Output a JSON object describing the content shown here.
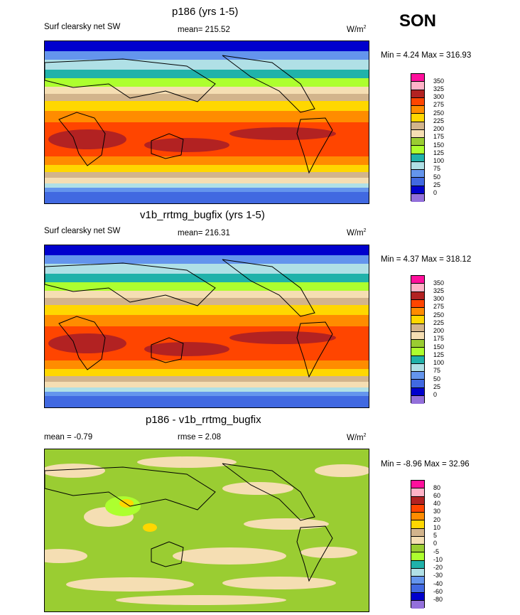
{
  "season": "SON",
  "panels": [
    {
      "title": "p186 (yrs 1-5)",
      "left_label": "Surf clearsky net SW",
      "mean_label": "mean= 215.52",
      "units": "W/m",
      "units_sup": "2",
      "minmax": "Min =   4.24 Max = 316.93",
      "colorbar_labels": [
        "350",
        "325",
        "300",
        "275",
        "250",
        "225",
        "200",
        "175",
        "150",
        "125",
        "100",
        "75",
        "50",
        "25",
        "0"
      ],
      "colors": [
        "#ff0f9c",
        "#ffb3c8",
        "#b22222",
        "#ff4500",
        "#ff8c00",
        "#ffd700",
        "#d2b48c",
        "#f5deb3",
        "#9acd32",
        "#adff2f",
        "#20b2aa",
        "#b0e0e6",
        "#6495ed",
        "#4169e1",
        "#0000cd",
        "#9370db"
      ]
    },
    {
      "title": "v1b_rrtmg_bugfix (yrs 1-5)",
      "left_label": "Surf clearsky net SW",
      "mean_label": "mean= 216.31",
      "units": "W/m",
      "units_sup": "2",
      "minmax": "Min =   4.37 Max = 318.12",
      "colorbar_labels": [
        "350",
        "325",
        "300",
        "275",
        "250",
        "225",
        "200",
        "175",
        "150",
        "125",
        "100",
        "75",
        "50",
        "25",
        "0"
      ],
      "colors": [
        "#ff0f9c",
        "#ffb3c8",
        "#b22222",
        "#ff4500",
        "#ff8c00",
        "#ffd700",
        "#d2b48c",
        "#f5deb3",
        "#9acd32",
        "#adff2f",
        "#20b2aa",
        "#b0e0e6",
        "#6495ed",
        "#4169e1",
        "#0000cd",
        "#9370db"
      ]
    },
    {
      "title": "p186 - v1b_rrtmg_bugfix",
      "left_label": "mean =  -0.79",
      "mean_label": "rmse =   2.08",
      "units": "W/m",
      "units_sup": "2",
      "minmax": "Min =  -8.96 Max =  32.96",
      "colorbar_labels": [
        "80",
        "60",
        "40",
        "30",
        "20",
        "10",
        "5",
        "0",
        "-5",
        "-10",
        "-20",
        "-30",
        "-40",
        "-60",
        "-80"
      ],
      "colors": [
        "#ff0f9c",
        "#ffb3c8",
        "#b22222",
        "#ff4500",
        "#ff8c00",
        "#ffd700",
        "#d2b48c",
        "#f5deb3",
        "#9acd32",
        "#adff2f",
        "#20b2aa",
        "#b0e0e6",
        "#6495ed",
        "#4169e1",
        "#0000cd",
        "#9370db"
      ]
    }
  ],
  "chart_data": [
    {
      "type": "heatmap",
      "title": "p186 (yrs 1-5)",
      "subtitle": "Surf clearsky net SW",
      "annotations": [
        "mean= 215.52",
        "Min =   4.24 Max = 316.93"
      ],
      "units": "W/m2",
      "levels": [
        0,
        25,
        50,
        75,
        100,
        125,
        150,
        175,
        200,
        225,
        250,
        275,
        300,
        325,
        350
      ],
      "range": [
        4.24,
        316.93
      ],
      "mean": 215.52
    },
    {
      "type": "heatmap",
      "title": "v1b_rrtmg_bugfix (yrs 1-5)",
      "subtitle": "Surf clearsky net SW",
      "annotations": [
        "mean= 216.31",
        "Min =   4.37 Max = 318.12"
      ],
      "units": "W/m2",
      "levels": [
        0,
        25,
        50,
        75,
        100,
        125,
        150,
        175,
        200,
        225,
        250,
        275,
        300,
        325,
        350
      ],
      "range": [
        4.37,
        318.12
      ],
      "mean": 216.31
    },
    {
      "type": "heatmap",
      "title": "p186 - v1b_rrtmg_bugfix",
      "annotations": [
        "mean =  -0.79",
        "rmse =   2.08",
        "Min =  -8.96 Max =  32.96"
      ],
      "units": "W/m2",
      "levels": [
        -80,
        -60,
        -40,
        -30,
        -20,
        -10,
        -5,
        0,
        5,
        10,
        20,
        30,
        40,
        60,
        80
      ],
      "range": [
        -8.96,
        32.96
      ],
      "mean": -0.79,
      "rmse": 2.08
    }
  ]
}
